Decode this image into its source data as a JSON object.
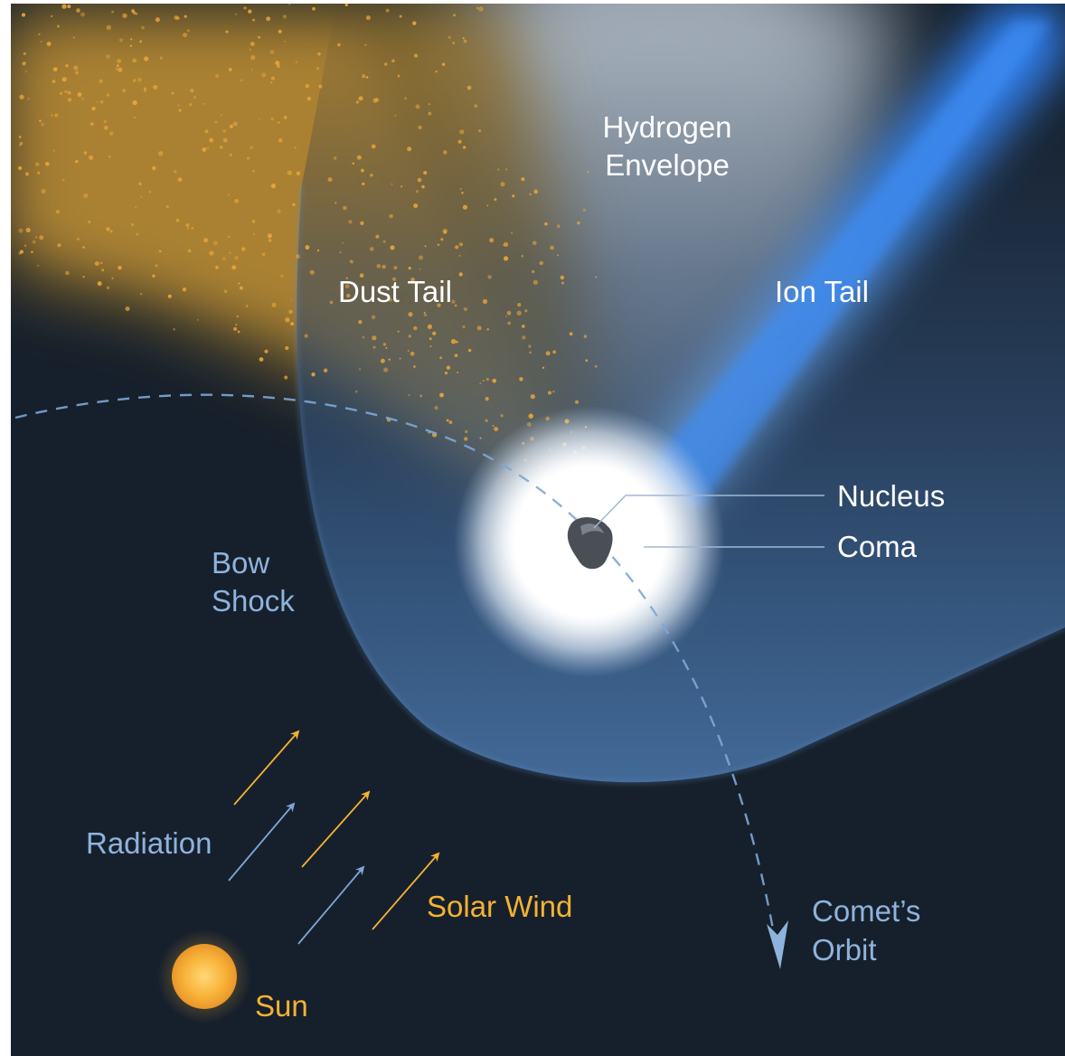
{
  "colors": {
    "background": "#16202c",
    "dust": "#e8a53a",
    "ion": "#3a86e8",
    "bow_shock": "#8fb3dc",
    "label_white": "#ffffff",
    "label_blue": "#8fb3dc",
    "label_orange": "#f4b233"
  },
  "labels": {
    "hydrogen_1": "Hydrogen",
    "hydrogen_2": "Envelope",
    "dust_tail": "Dust Tail",
    "ion_tail": "Ion Tail",
    "nucleus": "Nucleus",
    "coma": "Coma",
    "bow_1": "Bow",
    "bow_2": "Shock",
    "radiation": "Radiation",
    "solar_wind": "Solar Wind",
    "sun": "Sun",
    "orbit_1": "Comet’s",
    "orbit_2": "Orbit"
  }
}
